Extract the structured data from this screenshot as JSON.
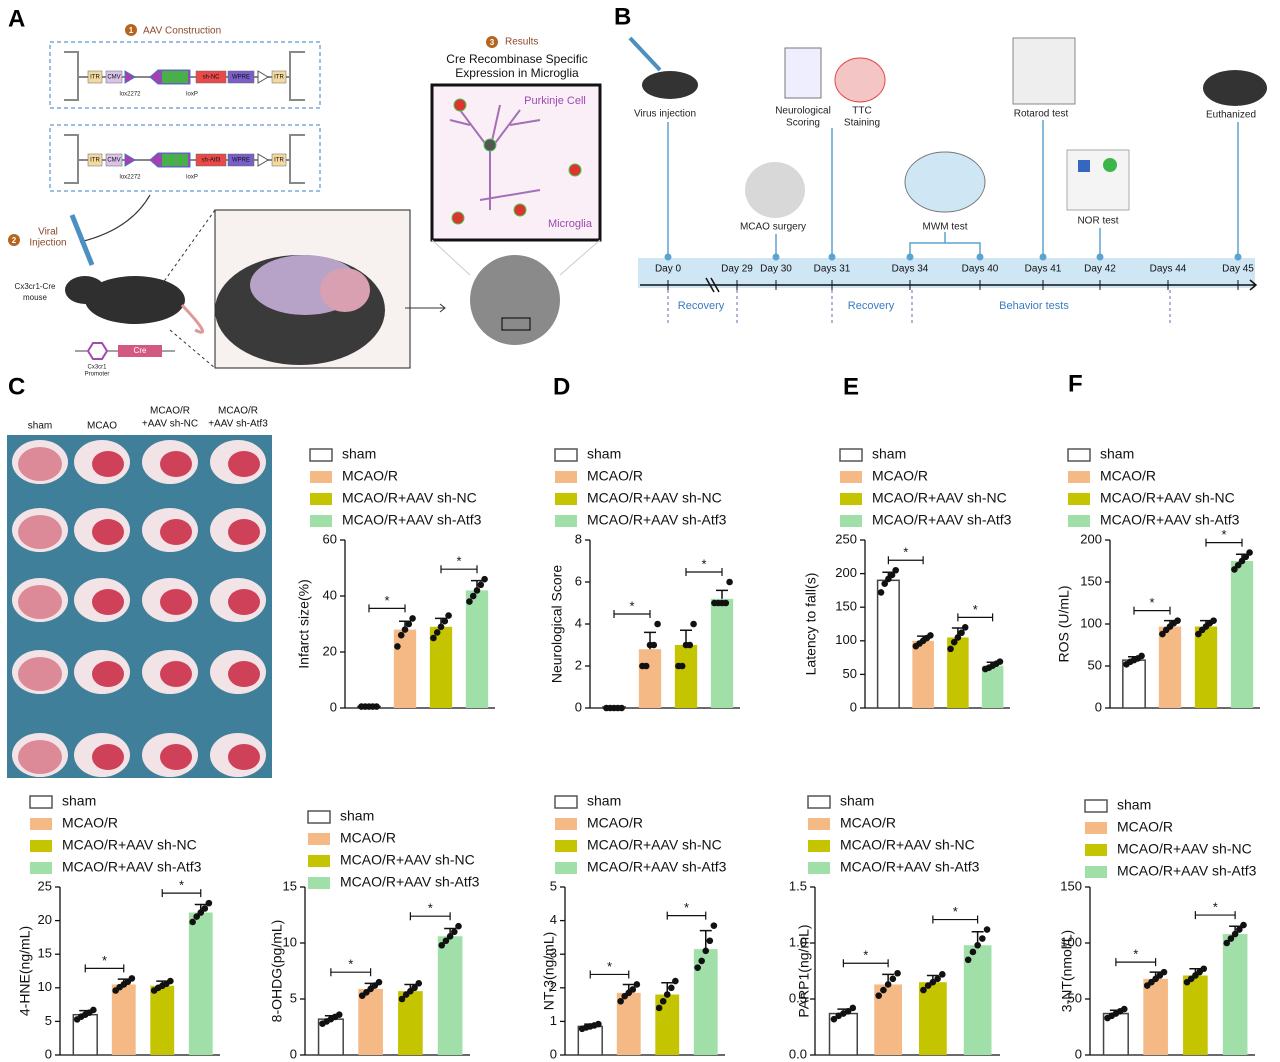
{
  "figure": {
    "panel_labels": [
      "A",
      "B",
      "C",
      "D",
      "E",
      "F"
    ],
    "a": {
      "steps": [
        "1",
        "2",
        "3"
      ],
      "construction": "AAV Construction",
      "construct_parts": [
        "ITR",
        "CMV",
        "sh-NC",
        "WPRE",
        "ITR",
        "sh-Atf3"
      ],
      "lox": [
        "lox2272",
        "loxP"
      ],
      "injection": [
        "Viral",
        "Injection"
      ],
      "mouse": [
        "Cx3cr1-Cre",
        "mouse"
      ],
      "promoter": [
        "Cx3cr1",
        "Promoter"
      ],
      "cre": "Cre",
      "results": "Results",
      "results_title": [
        "Cre Recombinase Specific",
        "Expression in Microglia"
      ],
      "purkinje": "Purkinje Cell",
      "microglia": "Microglia"
    },
    "b": {
      "events": [
        "Virus injection",
        [
          "Neurological",
          "Scoring"
        ],
        [
          "TTC",
          "Staining"
        ],
        "MCAO surgery",
        "MWM test",
        "Rotarod test",
        "NOR test",
        "Euthanized"
      ],
      "days": [
        "Day 0",
        "Day 29",
        "Day 30",
        "Days 31",
        "Days 34",
        "Days 40",
        "Days 41",
        "Day 42",
        "Days 44",
        "Day 45"
      ],
      "phases": [
        "Recovery",
        "Recovery",
        "Behavior tests"
      ]
    },
    "c": {
      "column_labels": [
        "sham",
        "MCAO",
        [
          "MCAO/R",
          "+AAV sh-NC"
        ],
        [
          "MCAO/R",
          "+AAV sh-Atf3"
        ]
      ]
    }
  },
  "chart_data": [
    {
      "type": "bar",
      "ylabel": "Infarct size(%)",
      "categories": [
        "sham",
        "MCAO/R",
        "MCAO/R+AAV sh-NC",
        "MCAO/R+AAV sh-Atf3"
      ],
      "colors": [
        "#ffffff",
        "#f5b985",
        "#c5c400",
        "#a0e0a8"
      ],
      "values": [
        0.5,
        28,
        29,
        42
      ],
      "errors": [
        0,
        3,
        3,
        3.5
      ],
      "points": [
        [
          0.5,
          0.5,
          0.5,
          0.5,
          0.5
        ],
        [
          22,
          26,
          28,
          30,
          32
        ],
        [
          25,
          27,
          29,
          31,
          33
        ],
        [
          38,
          40,
          42,
          44,
          46
        ]
      ],
      "ylim": [
        0,
        60
      ],
      "yticks": [
        0,
        20,
        40,
        60
      ],
      "significance": [
        {
          "groups": [
            0,
            1
          ],
          "label": "*"
        },
        {
          "groups": [
            2,
            3
          ],
          "label": "*"
        }
      ]
    },
    {
      "type": "bar",
      "ylabel": "Neurological Score",
      "categories": [
        "sham",
        "MCAO/R",
        "MCAO/R+AAV sh-NC",
        "MCAO/R+AAV sh-Atf3"
      ],
      "colors": [
        "#ffffff",
        "#f5b985",
        "#c5c400",
        "#a0e0a8"
      ],
      "values": [
        0.05,
        2.8,
        3,
        5.2
      ],
      "errors": [
        0,
        0.8,
        0.7,
        0.4
      ],
      "points": [
        [
          0,
          0,
          0,
          0,
          0
        ],
        [
          2,
          2,
          3,
          3,
          4
        ],
        [
          2,
          2,
          3,
          3,
          4
        ],
        [
          5,
          5,
          5,
          5,
          6
        ]
      ],
      "ylim": [
        0,
        8
      ],
      "yticks": [
        0,
        2,
        4,
        6,
        8
      ],
      "significance": [
        {
          "groups": [
            0,
            1
          ],
          "label": "*"
        },
        {
          "groups": [
            2,
            3
          ],
          "label": "*"
        }
      ]
    },
    {
      "type": "bar",
      "ylabel": "Latency to fall(s)",
      "categories": [
        "sham",
        "MCAO/R",
        "MCAO/R+AAV sh-NC",
        "MCAO/R+AAV sh-Atf3"
      ],
      "colors": [
        "#ffffff",
        "#f5b985",
        "#c5c400",
        "#a0e0a8"
      ],
      "values": [
        190,
        100,
        105,
        63
      ],
      "errors": [
        12,
        7,
        14,
        5
      ],
      "points": [
        [
          172,
          185,
          192,
          198,
          205
        ],
        [
          92,
          96,
          100,
          104,
          108
        ],
        [
          88,
          98,
          105,
          112,
          120
        ],
        [
          58,
          60,
          63,
          66,
          69
        ]
      ],
      "ylim": [
        0,
        250
      ],
      "yticks": [
        0,
        50,
        100,
        150,
        200,
        250
      ],
      "significance": [
        {
          "groups": [
            0,
            1
          ],
          "label": "*"
        },
        {
          "groups": [
            2,
            3
          ],
          "label": "*"
        }
      ]
    },
    {
      "type": "bar",
      "ylabel": "ROS (U/mL)",
      "categories": [
        "sham",
        "MCAO/R",
        "MCAO/R+AAV sh-NC",
        "MCAO/R+AAV sh-Atf3"
      ],
      "colors": [
        "#ffffff",
        "#f5b985",
        "#c5c400",
        "#a0e0a8"
      ],
      "values": [
        57,
        97,
        97,
        175
      ],
      "errors": [
        4,
        7,
        7,
        8
      ],
      "points": [
        [
          52,
          55,
          57,
          59,
          62
        ],
        [
          88,
          93,
          97,
          101,
          104
        ],
        [
          88,
          93,
          97,
          101,
          104
        ],
        [
          165,
          170,
          175,
          180,
          185
        ]
      ],
      "ylim": [
        0,
        200
      ],
      "yticks": [
        0,
        50,
        100,
        150,
        200
      ],
      "significance": [
        {
          "groups": [
            0,
            1
          ],
          "label": "*"
        },
        {
          "groups": [
            2,
            3
          ],
          "label": "*"
        }
      ]
    },
    {
      "type": "bar",
      "ylabel": "4-HNE(ng/mL)",
      "categories": [
        "sham",
        "MCAO/R",
        "MCAO/R+AAV sh-NC",
        "MCAO/R+AAV sh-Atf3"
      ],
      "colors": [
        "#ffffff",
        "#f5b985",
        "#c5c400",
        "#a0e0a8"
      ],
      "values": [
        6,
        10.5,
        10.3,
        21.2
      ],
      "errors": [
        0.6,
        0.8,
        0.7,
        1.2
      ],
      "points": [
        [
          5.3,
          5.7,
          6,
          6.3,
          6.7
        ],
        [
          9.6,
          10.1,
          10.5,
          10.9,
          11.4
        ],
        [
          9.6,
          10,
          10.3,
          10.6,
          11
        ],
        [
          19.8,
          20.6,
          21.2,
          21.8,
          22.6
        ]
      ],
      "ylim": [
        0,
        25
      ],
      "yticks": [
        0,
        5,
        10,
        15,
        20,
        25
      ],
      "significance": [
        {
          "groups": [
            0,
            1
          ],
          "label": "*"
        },
        {
          "groups": [
            2,
            3
          ],
          "label": "*"
        }
      ]
    },
    {
      "type": "bar",
      "ylabel": "8-OHDG(pg/mL)",
      "categories": [
        "sham",
        "MCAO/R",
        "MCAO/R+AAV sh-NC",
        "MCAO/R+AAV sh-Atf3"
      ],
      "colors": [
        "#ffffff",
        "#f5b985",
        "#c5c400",
        "#a0e0a8"
      ],
      "values": [
        3.2,
        5.9,
        5.7,
        10.6
      ],
      "errors": [
        0.3,
        0.5,
        0.6,
        0.7
      ],
      "points": [
        [
          2.8,
          3,
          3.2,
          3.4,
          3.6
        ],
        [
          5.3,
          5.6,
          5.9,
          6.2,
          6.5
        ],
        [
          5,
          5.4,
          5.7,
          6,
          6.4
        ],
        [
          9.8,
          10.2,
          10.6,
          11,
          11.5
        ]
      ],
      "ylim": [
        0,
        15
      ],
      "yticks": [
        0,
        5,
        10,
        15
      ],
      "significance": [
        {
          "groups": [
            0,
            1
          ],
          "label": "*"
        },
        {
          "groups": [
            2,
            3
          ],
          "label": "*"
        }
      ]
    },
    {
      "type": "bar",
      "ylabel": "NT-3(ng/mL)",
      "categories": [
        "sham",
        "MCAO/R",
        "MCAO/R+AAV sh-NC",
        "MCAO/R+AAV sh-Atf3"
      ],
      "colors": [
        "#ffffff",
        "#f5b985",
        "#c5c400",
        "#a0e0a8"
      ],
      "values": [
        0.85,
        1.85,
        1.8,
        3.15
      ],
      "errors": [
        0.07,
        0.25,
        0.35,
        0.55
      ],
      "points": [
        [
          0.78,
          0.82,
          0.85,
          0.88,
          0.92
        ],
        [
          1.6,
          1.75,
          1.85,
          1.95,
          2.1
        ],
        [
          1.4,
          1.6,
          1.8,
          2,
          2.2
        ],
        [
          2.6,
          2.8,
          3.1,
          3.4,
          3.85
        ]
      ],
      "ylim": [
        0,
        5
      ],
      "yticks": [
        0,
        1,
        2,
        3,
        4,
        5
      ],
      "significance": [
        {
          "groups": [
            0,
            1
          ],
          "label": "*"
        },
        {
          "groups": [
            2,
            3
          ],
          "label": "*"
        }
      ]
    },
    {
      "type": "bar",
      "ylabel": "PARP1(ng/mL)",
      "categories": [
        "sham",
        "MCAO/R",
        "MCAO/R+AAV sh-NC",
        "MCAO/R+AAV sh-Atf3"
      ],
      "colors": [
        "#ffffff",
        "#f5b985",
        "#c5c400",
        "#a0e0a8"
      ],
      "values": [
        0.37,
        0.63,
        0.65,
        0.98
      ],
      "errors": [
        0.04,
        0.09,
        0.06,
        0.12
      ],
      "points": [
        [
          0.32,
          0.35,
          0.37,
          0.39,
          0.42
        ],
        [
          0.53,
          0.58,
          0.63,
          0.68,
          0.73
        ],
        [
          0.58,
          0.62,
          0.65,
          0.68,
          0.72
        ],
        [
          0.85,
          0.92,
          0.98,
          1.04,
          1.12
        ]
      ],
      "ylim": [
        0,
        1.5
      ],
      "yticks": [
        {
          "value": 0,
          "label": "0.0"
        },
        0.5,
        {
          "value": 1,
          "label": "1.0"
        },
        1.5
      ],
      "significance": [
        {
          "groups": [
            0,
            1
          ],
          "label": "*"
        },
        {
          "groups": [
            2,
            3
          ],
          "label": "*"
        }
      ]
    },
    {
      "type": "bar",
      "ylabel": "3-NT(nmol/L)",
      "categories": [
        "sham",
        "MCAO/R",
        "MCAO/R+AAV sh-NC",
        "MCAO/R+AAV sh-Atf3"
      ],
      "colors": [
        "#ffffff",
        "#f5b985",
        "#c5c400",
        "#a0e0a8"
      ],
      "values": [
        37,
        68,
        71,
        108
      ],
      "errors": [
        3,
        6,
        6,
        7
      ],
      "points": [
        [
          33,
          35,
          37,
          39,
          41
        ],
        [
          62,
          65,
          68,
          71,
          74
        ],
        [
          65,
          68,
          71,
          74,
          77
        ],
        [
          100,
          104,
          108,
          112,
          116
        ]
      ],
      "ylim": [
        0,
        150
      ],
      "yticks": [
        0,
        50,
        100,
        150
      ],
      "significance": [
        {
          "groups": [
            0,
            1
          ],
          "label": "*"
        },
        {
          "groups": [
            2,
            3
          ],
          "label": "*"
        }
      ]
    }
  ]
}
